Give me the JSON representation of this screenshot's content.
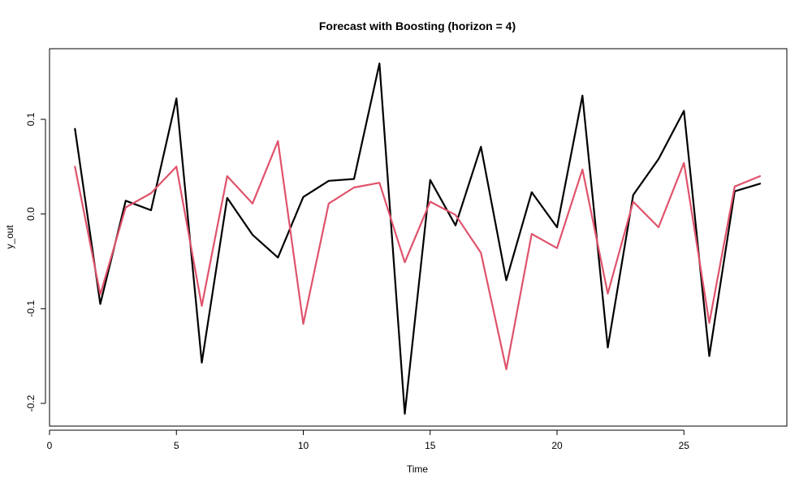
{
  "chart_data": {
    "type": "line",
    "title": "Forecast with Boosting (horizon = 4)",
    "xlabel": "Time",
    "ylabel": "y_out",
    "xlim": [
      0,
      29
    ],
    "ylim": [
      -0.21,
      0.16
    ],
    "x_ticks": [
      0,
      5,
      10,
      15,
      20,
      25
    ],
    "x_tick_labels": [
      "0",
      "5",
      "10",
      "15",
      "20",
      "25"
    ],
    "y_ticks": [
      -0.2,
      -0.1,
      0.0,
      0.1
    ],
    "y_tick_labels": [
      "-0.2",
      "-0.1",
      "0.0",
      "0.1"
    ],
    "grid": false,
    "legend": "none",
    "x": [
      1,
      2,
      3,
      4,
      5,
      6,
      7,
      8,
      9,
      10,
      11,
      12,
      13,
      14,
      15,
      16,
      17,
      18,
      19,
      20,
      21,
      22,
      23,
      24,
      25,
      26,
      27,
      28
    ],
    "series": [
      {
        "color": "#000000",
        "values": [
          0.09,
          -0.095,
          0.014,
          0.004,
          0.122,
          -0.157,
          0.017,
          -0.022,
          -0.046,
          0.018,
          0.035,
          0.037,
          0.159,
          -0.211,
          0.036,
          -0.012,
          0.071,
          -0.07,
          0.023,
          -0.014,
          0.125,
          -0.141,
          0.02,
          0.058,
          0.109,
          -0.15,
          0.024,
          0.032
        ]
      },
      {
        "color": "#DF536B",
        "values": [
          0.05,
          -0.085,
          0.007,
          0.022,
          0.05,
          -0.097,
          0.04,
          0.011,
          0.077,
          -0.116,
          0.011,
          0.028,
          0.033,
          -0.051,
          0.013,
          -0.001,
          -0.041,
          -0.164,
          -0.021,
          -0.036,
          0.047,
          -0.084,
          0.013,
          -0.014,
          0.054,
          -0.115,
          0.029,
          0.04
        ]
      }
    ]
  }
}
